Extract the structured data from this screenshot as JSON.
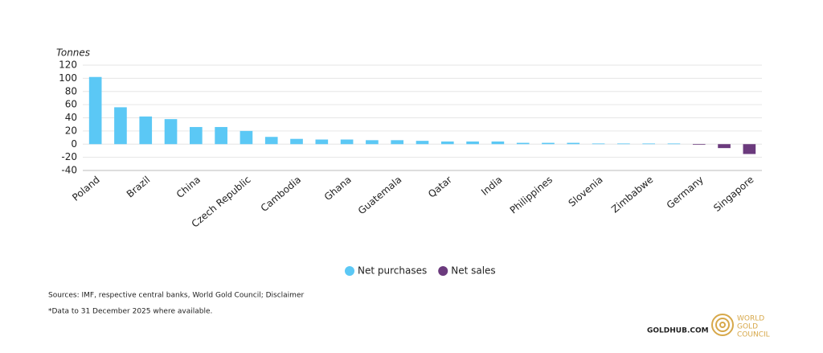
{
  "chart_data": {
    "type": "bar",
    "y_label": "Tonnes",
    "categories": [
      "Poland",
      null,
      "Brazil",
      null,
      "China",
      null,
      "Czech Republic",
      null,
      "Cambodia",
      null,
      "Ghana",
      null,
      "Guatemala",
      null,
      "Qatar",
      null,
      "India",
      null,
      "Philippines",
      null,
      "Slovenia",
      null,
      "Zimbabwe",
      null,
      "Germany",
      null,
      "Singapore"
    ],
    "series": [
      {
        "name": "Net purchases",
        "color": "#5bc8f5",
        "values": [
          102,
          56,
          42,
          38,
          26,
          26,
          20,
          11,
          8,
          7,
          7,
          6,
          6,
          5,
          4,
          4,
          4,
          2,
          2,
          2,
          1,
          1,
          1,
          1,
          null,
          null,
          null
        ]
      },
      {
        "name": "Net sales",
        "color": "#6b3a7d",
        "values": [
          null,
          null,
          null,
          null,
          null,
          null,
          null,
          null,
          null,
          null,
          null,
          null,
          null,
          null,
          null,
          null,
          null,
          null,
          null,
          null,
          null,
          null,
          null,
          null,
          -1,
          -6,
          -15
        ]
      }
    ],
    "ylim": [
      -40,
      120
    ],
    "yticks": [
      -40,
      -20,
      0,
      20,
      40,
      60,
      80,
      100,
      120
    ],
    "grid": true,
    "source": "Sources: IMF, respective central banks, World Gold Council; Disclaimer",
    "footnote": "*Data to 31 December 2025 where available.",
    "brand": "GOLDHUB.COM",
    "logo_lines": [
      "WORLD",
      "GOLD",
      "COUNCIL"
    ]
  }
}
